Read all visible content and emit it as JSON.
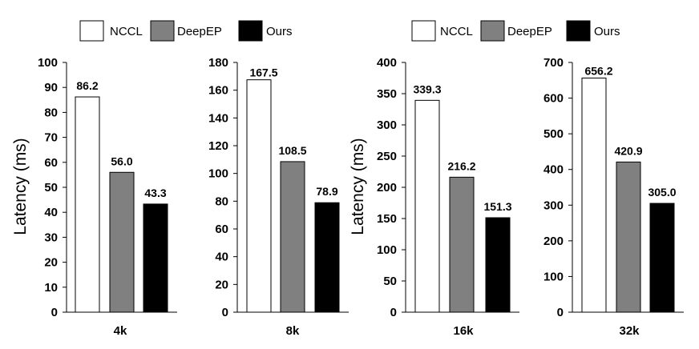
{
  "chart_data": {
    "type": "bar",
    "series_names": [
      "NCCL",
      "DeepEP",
      "Ours"
    ],
    "series_colors": [
      "#ffffff",
      "#808080",
      "#000000"
    ],
    "ylabel": "Latency (ms)",
    "panels": [
      {
        "category": "4k",
        "values": [
          86.2,
          56.0,
          43.3
        ],
        "value_labels": [
          "86.2",
          "56.0",
          "43.3"
        ],
        "ylim": [
          0,
          100
        ],
        "yticks": [
          0,
          10,
          20,
          30,
          40,
          50,
          60,
          70,
          80,
          90,
          100
        ]
      },
      {
        "category": "8k",
        "values": [
          167.5,
          108.5,
          78.9
        ],
        "value_labels": [
          "167.5",
          "108.5",
          "78.9"
        ],
        "ylim": [
          0,
          180
        ],
        "yticks": [
          0,
          20,
          40,
          60,
          80,
          100,
          120,
          140,
          160,
          180
        ]
      },
      {
        "category": "16k",
        "values": [
          339.3,
          216.2,
          151.3
        ],
        "value_labels": [
          "339.3",
          "216.2",
          "151.3"
        ],
        "ylim": [
          0,
          400
        ],
        "yticks": [
          0,
          50,
          100,
          150,
          200,
          250,
          300,
          350,
          400
        ]
      },
      {
        "category": "32k",
        "values": [
          656.2,
          420.9,
          305.0
        ],
        "value_labels": [
          "656.2",
          "420.9",
          "305.0"
        ],
        "ylim": [
          0,
          700
        ],
        "yticks": [
          0,
          100,
          200,
          300,
          400,
          500,
          600,
          700
        ]
      }
    ],
    "legends": [
      {
        "entries": [
          "NCCL",
          "DeepEP",
          "Ours"
        ]
      },
      {
        "entries": [
          "NCCL",
          "DeepEP",
          "Ours"
        ]
      }
    ]
  }
}
